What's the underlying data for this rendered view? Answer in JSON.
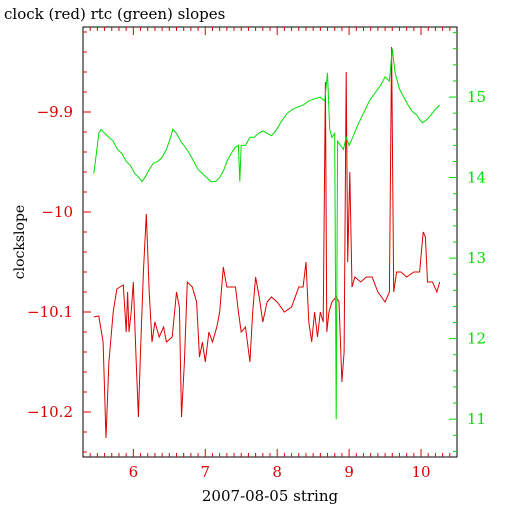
{
  "chart_data": {
    "type": "line",
    "title": "clock (red) rtc (green) slopes",
    "xlabel": "2007-08-05 string",
    "ylabel": "clockslope",
    "y2label": "",
    "xlim": [
      5.3,
      10.5
    ],
    "ylim": [
      -10.245,
      -9.815
    ],
    "y2lim": [
      10.53,
      15.87
    ],
    "x_ticks": [
      6,
      7,
      8,
      9,
      10
    ],
    "y_ticks": [
      -10.2,
      -10.1,
      -10,
      -9.9
    ],
    "y2_ticks": [
      11,
      12,
      13,
      14,
      15
    ],
    "x_tick_labels": [
      "6",
      "7",
      "8",
      "9",
      "10"
    ],
    "y_tick_labels": [
      "−10.2",
      "−10.1",
      "−10",
      "−9.9"
    ],
    "y2_tick_labels": [
      "11",
      "12",
      "13",
      "14",
      "15"
    ],
    "colors": {
      "left_axis": "#dd0000",
      "right_axis": "#00dd00",
      "frame": "#000000"
    },
    "series": [
      {
        "name": "clock",
        "color": "#dd0000",
        "axis": "left",
        "points": [
          [
            5.45,
            -10.105
          ],
          [
            5.52,
            -10.104
          ],
          [
            5.58,
            -10.13
          ],
          [
            5.62,
            -10.226
          ],
          [
            5.66,
            -10.15
          ],
          [
            5.72,
            -10.1
          ],
          [
            5.77,
            -10.077
          ],
          [
            5.86,
            -10.073
          ],
          [
            5.9,
            -10.12
          ],
          [
            5.92,
            -10.08
          ],
          [
            5.94,
            -10.12
          ],
          [
            5.97,
            -10.1
          ],
          [
            6.0,
            -10.07
          ],
          [
            6.04,
            -10.15
          ],
          [
            6.07,
            -10.205
          ],
          [
            6.1,
            -10.14
          ],
          [
            6.14,
            -10.06
          ],
          [
            6.18,
            -10.002
          ],
          [
            6.22,
            -10.08
          ],
          [
            6.26,
            -10.13
          ],
          [
            6.3,
            -10.11
          ],
          [
            6.36,
            -10.125
          ],
          [
            6.42,
            -10.115
          ],
          [
            6.46,
            -10.13
          ],
          [
            6.54,
            -10.125
          ],
          [
            6.6,
            -10.08
          ],
          [
            6.64,
            -10.095
          ],
          [
            6.67,
            -10.205
          ],
          [
            6.71,
            -10.15
          ],
          [
            6.75,
            -10.07
          ],
          [
            6.82,
            -10.075
          ],
          [
            6.88,
            -10.09
          ],
          [
            6.92,
            -10.145
          ],
          [
            6.96,
            -10.13
          ],
          [
            7.0,
            -10.15
          ],
          [
            7.05,
            -10.12
          ],
          [
            7.1,
            -10.13
          ],
          [
            7.16,
            -10.115
          ],
          [
            7.2,
            -10.1
          ],
          [
            7.25,
            -10.055
          ],
          [
            7.3,
            -10.075
          ],
          [
            7.36,
            -10.075
          ],
          [
            7.42,
            -10.075
          ],
          [
            7.46,
            -10.1
          ],
          [
            7.5,
            -10.12
          ],
          [
            7.56,
            -10.115
          ],
          [
            7.62,
            -10.15
          ],
          [
            7.66,
            -10.1
          ],
          [
            7.7,
            -10.065
          ],
          [
            7.75,
            -10.085
          ],
          [
            7.8,
            -10.11
          ],
          [
            7.86,
            -10.09
          ],
          [
            7.92,
            -10.085
          ],
          [
            8.0,
            -10.09
          ],
          [
            8.1,
            -10.1
          ],
          [
            8.2,
            -10.095
          ],
          [
            8.3,
            -10.075
          ],
          [
            8.36,
            -10.075
          ],
          [
            8.4,
            -10.05
          ],
          [
            8.44,
            -10.11
          ],
          [
            8.48,
            -10.13
          ],
          [
            8.52,
            -10.1
          ],
          [
            8.56,
            -10.125
          ],
          [
            8.6,
            -10.1
          ],
          [
            8.64,
            -10.11
          ],
          [
            8.67,
            -9.87
          ],
          [
            8.69,
            -10.12
          ],
          [
            8.72,
            -10.1
          ],
          [
            8.76,
            -10.09
          ],
          [
            8.82,
            -10.085
          ],
          [
            8.86,
            -10.09
          ],
          [
            8.9,
            -10.17
          ],
          [
            8.93,
            -10.14
          ],
          [
            8.96,
            -9.86
          ],
          [
            8.98,
            -10.05
          ],
          [
            9.01,
            -9.96
          ],
          [
            9.04,
            -10.075
          ],
          [
            9.08,
            -10.065
          ],
          [
            9.16,
            -10.07
          ],
          [
            9.24,
            -10.065
          ],
          [
            9.32,
            -10.065
          ],
          [
            9.4,
            -10.08
          ],
          [
            9.5,
            -10.09
          ],
          [
            9.56,
            -10.08
          ],
          [
            9.59,
            -9.835
          ],
          [
            9.62,
            -10.08
          ],
          [
            9.66,
            -10.06
          ],
          [
            9.72,
            -10.06
          ],
          [
            9.8,
            -10.065
          ],
          [
            9.9,
            -10.06
          ],
          [
            9.98,
            -10.06
          ],
          [
            10.03,
            -10.02
          ],
          [
            10.06,
            -10.025
          ],
          [
            10.09,
            -10.07
          ],
          [
            10.16,
            -10.07
          ],
          [
            10.22,
            -10.08
          ],
          [
            10.26,
            -10.07
          ]
        ]
      },
      {
        "name": "rtc",
        "color": "#00dd00",
        "axis": "right",
        "points": [
          [
            5.45,
            14.05
          ],
          [
            5.48,
            14.25
          ],
          [
            5.52,
            14.55
          ],
          [
            5.55,
            14.6
          ],
          [
            5.6,
            14.55
          ],
          [
            5.66,
            14.5
          ],
          [
            5.72,
            14.45
          ],
          [
            5.78,
            14.35
          ],
          [
            5.84,
            14.3
          ],
          [
            5.9,
            14.2
          ],
          [
            5.96,
            14.15
          ],
          [
            6.02,
            14.05
          ],
          [
            6.08,
            14.0
          ],
          [
            6.12,
            13.95
          ],
          [
            6.16,
            14.0
          ],
          [
            6.22,
            14.1
          ],
          [
            6.28,
            14.18
          ],
          [
            6.34,
            14.2
          ],
          [
            6.4,
            14.25
          ],
          [
            6.46,
            14.35
          ],
          [
            6.5,
            14.45
          ],
          [
            6.55,
            14.6
          ],
          [
            6.6,
            14.55
          ],
          [
            6.66,
            14.45
          ],
          [
            6.72,
            14.38
          ],
          [
            6.78,
            14.3
          ],
          [
            6.84,
            14.2
          ],
          [
            6.9,
            14.1
          ],
          [
            6.96,
            14.05
          ],
          [
            7.02,
            14.0
          ],
          [
            7.08,
            13.95
          ],
          [
            7.14,
            13.95
          ],
          [
            7.2,
            14.0
          ],
          [
            7.26,
            14.1
          ],
          [
            7.3,
            14.2
          ],
          [
            7.36,
            14.3
          ],
          [
            7.42,
            14.38
          ],
          [
            7.46,
            14.4
          ],
          [
            7.48,
            13.95
          ],
          [
            7.5,
            14.4
          ],
          [
            7.56,
            14.4
          ],
          [
            7.62,
            14.5
          ],
          [
            7.68,
            14.5
          ],
          [
            7.74,
            14.55
          ],
          [
            7.8,
            14.58
          ],
          [
            7.86,
            14.55
          ],
          [
            7.92,
            14.52
          ],
          [
            7.98,
            14.58
          ],
          [
            8.06,
            14.7
          ],
          [
            8.14,
            14.8
          ],
          [
            8.22,
            14.85
          ],
          [
            8.3,
            14.88
          ],
          [
            8.36,
            14.9
          ],
          [
            8.44,
            14.95
          ],
          [
            8.52,
            14.98
          ],
          [
            8.6,
            15.0
          ],
          [
            8.66,
            14.95
          ],
          [
            8.7,
            15.3
          ],
          [
            8.73,
            14.6
          ],
          [
            8.76,
            14.5
          ],
          [
            8.8,
            14.55
          ],
          [
            8.82,
            11.0
          ],
          [
            8.84,
            14.45
          ],
          [
            8.88,
            14.4
          ],
          [
            8.92,
            14.35
          ],
          [
            8.96,
            14.5
          ],
          [
            9.0,
            14.4
          ],
          [
            9.05,
            14.5
          ],
          [
            9.12,
            14.65
          ],
          [
            9.2,
            14.8
          ],
          [
            9.28,
            14.95
          ],
          [
            9.36,
            15.05
          ],
          [
            9.44,
            15.15
          ],
          [
            9.5,
            15.25
          ],
          [
            9.56,
            15.2
          ],
          [
            9.6,
            15.6
          ],
          [
            9.64,
            15.3
          ],
          [
            9.7,
            15.1
          ],
          [
            9.76,
            15.0
          ],
          [
            9.82,
            14.9
          ],
          [
            9.88,
            14.82
          ],
          [
            9.94,
            14.78
          ],
          [
            9.98,
            14.72
          ],
          [
            10.02,
            14.68
          ],
          [
            10.08,
            14.72
          ],
          [
            10.14,
            14.78
          ],
          [
            10.2,
            14.85
          ],
          [
            10.26,
            14.9
          ]
        ]
      }
    ]
  }
}
